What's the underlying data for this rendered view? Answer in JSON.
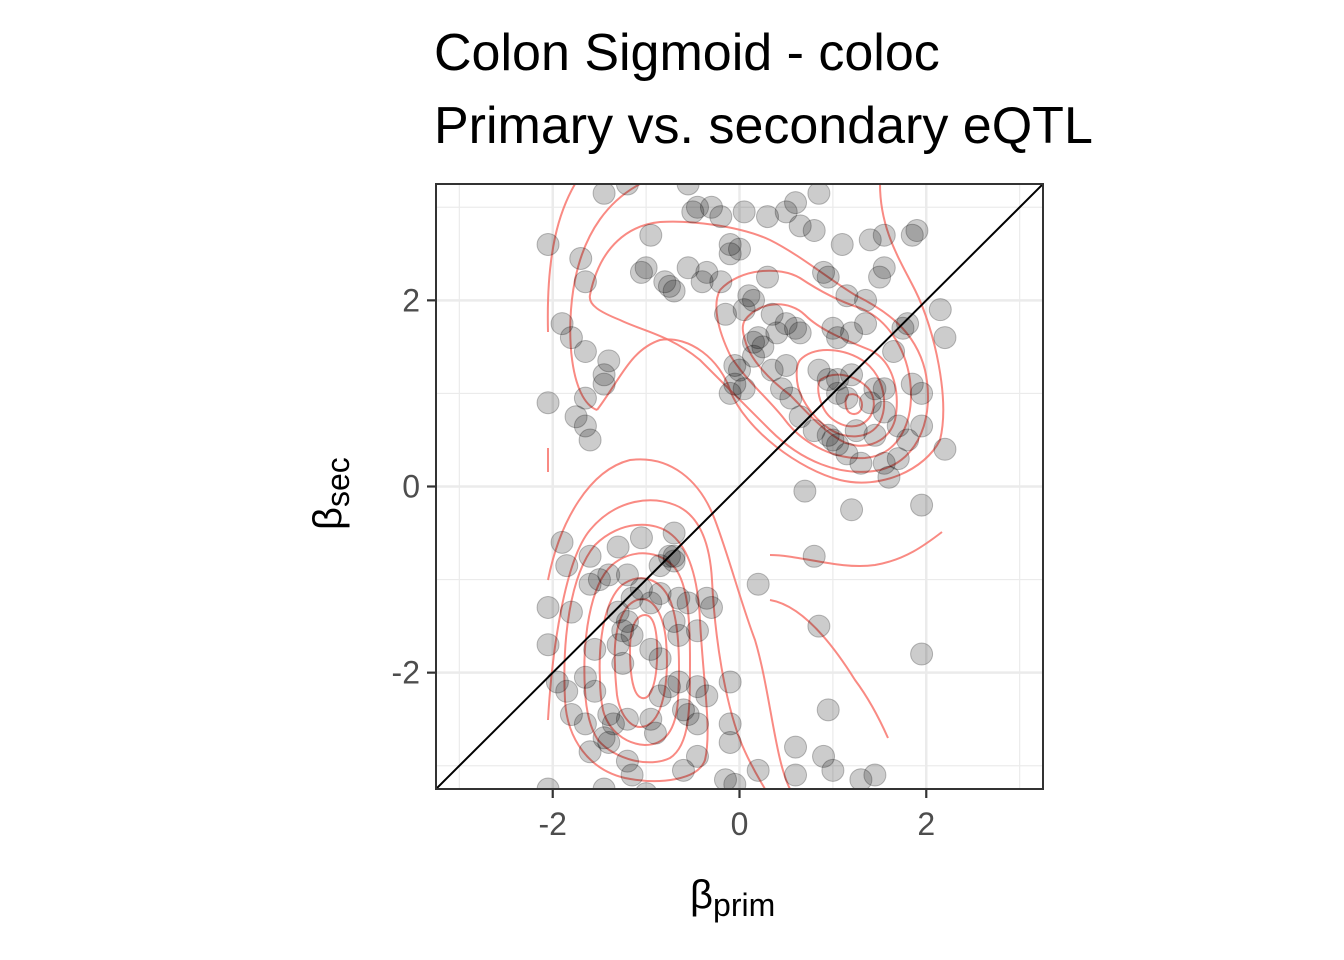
{
  "chart_data": {
    "type": "scatter",
    "title": "Colon Sigmoid - coloc",
    "subtitle": "Primary vs. secondary eQTL",
    "xlabel": {
      "symbol": "β",
      "subscript": "prim"
    },
    "ylabel": {
      "symbol": "β",
      "subscript": "sec"
    },
    "xlim": [
      -3.25,
      3.25
    ],
    "ylim": [
      -3.25,
      3.25
    ],
    "xticks": [
      -2,
      0,
      2
    ],
    "yticks": [
      -2,
      0,
      2
    ],
    "xtick_labels": [
      "-2",
      "0",
      "2"
    ],
    "ytick_labels": [
      "-2",
      "0",
      "2"
    ],
    "grid": true,
    "reference_line": "y = x",
    "colors": {
      "points": "#000000",
      "point_alpha": 0.2,
      "contours": "#f8766d",
      "panel_border": "#333333",
      "grid_major": "#ebebeb"
    },
    "series": [
      {
        "points": [
          [
            -2.05,
            2.6
          ],
          [
            -1.7,
            2.45
          ],
          [
            -1.65,
            2.2
          ],
          [
            -1.2,
            3.25
          ],
          [
            -1.45,
            3.15
          ],
          [
            -0.55,
            3.25
          ],
          [
            -0.45,
            3.0
          ],
          [
            -0.3,
            3.0
          ],
          [
            -0.5,
            2.95
          ],
          [
            -0.95,
            2.7
          ],
          [
            -0.2,
            2.9
          ],
          [
            -0.1,
            2.6
          ],
          [
            0.05,
            2.95
          ],
          [
            0.3,
            2.9
          ],
          [
            0.5,
            2.95
          ],
          [
            0.65,
            2.8
          ],
          [
            0.8,
            2.75
          ],
          [
            0.85,
            3.15
          ],
          [
            0.6,
            3.05
          ],
          [
            1.1,
            2.6
          ],
          [
            1.4,
            2.65
          ],
          [
            1.55,
            2.7
          ],
          [
            1.9,
            2.75
          ],
          [
            1.85,
            2.7
          ],
          [
            -1.0,
            2.35
          ],
          [
            -1.05,
            2.3
          ],
          [
            -0.55,
            2.35
          ],
          [
            -0.35,
            2.3
          ],
          [
            -0.1,
            2.5
          ],
          [
            0.0,
            2.55
          ],
          [
            -0.8,
            2.2
          ],
          [
            -0.75,
            2.15
          ],
          [
            -0.7,
            2.1
          ],
          [
            -0.4,
            2.2
          ],
          [
            -0.2,
            2.2
          ],
          [
            0.3,
            2.25
          ],
          [
            0.9,
            2.3
          ],
          [
            0.95,
            2.25
          ],
          [
            1.55,
            2.35
          ],
          [
            1.5,
            2.25
          ],
          [
            1.35,
            2.0
          ],
          [
            1.15,
            2.05
          ],
          [
            0.1,
            2.05
          ],
          [
            0.15,
            2.0
          ],
          [
            0.05,
            1.9
          ],
          [
            0.35,
            1.85
          ],
          [
            -0.15,
            1.85
          ],
          [
            0.5,
            1.75
          ],
          [
            0.4,
            1.65
          ],
          [
            0.6,
            1.7
          ],
          [
            0.65,
            1.65
          ],
          [
            1.0,
            1.7
          ],
          [
            1.35,
            1.75
          ],
          [
            1.8,
            1.75
          ],
          [
            1.75,
            1.7
          ],
          [
            2.15,
            1.9
          ],
          [
            2.2,
            1.6
          ],
          [
            1.65,
            1.45
          ],
          [
            1.2,
            1.65
          ],
          [
            1.05,
            1.6
          ],
          [
            0.15,
            1.55
          ],
          [
            0.2,
            1.6
          ],
          [
            0.25,
            1.5
          ],
          [
            0.15,
            1.4
          ],
          [
            -0.05,
            1.3
          ],
          [
            0.0,
            1.25
          ],
          [
            0.35,
            1.25
          ],
          [
            0.5,
            1.3
          ],
          [
            0.85,
            1.25
          ],
          [
            0.95,
            1.15
          ],
          [
            1.05,
            1.15
          ],
          [
            1.2,
            1.2
          ],
          [
            1.55,
            1.05
          ],
          [
            1.45,
            1.05
          ],
          [
            1.85,
            1.1
          ],
          [
            1.95,
            1.0
          ],
          [
            -1.9,
            1.75
          ],
          [
            -1.8,
            1.6
          ],
          [
            -1.65,
            1.45
          ],
          [
            -1.4,
            1.35
          ],
          [
            -1.45,
            1.2
          ],
          [
            -1.45,
            1.1
          ],
          [
            -1.65,
            0.95
          ],
          [
            -2.05,
            0.9
          ],
          [
            -1.75,
            0.75
          ],
          [
            -1.65,
            0.65
          ],
          [
            -1.6,
            0.5
          ],
          [
            -0.05,
            1.1
          ],
          [
            0.05,
            1.05
          ],
          [
            -0.1,
            1.0
          ],
          [
            0.45,
            1.05
          ],
          [
            0.55,
            0.95
          ],
          [
            1.05,
            1.0
          ],
          [
            1.15,
            0.95
          ],
          [
            1.4,
            0.9
          ],
          [
            1.55,
            0.8
          ],
          [
            0.65,
            0.75
          ],
          [
            0.8,
            0.6
          ],
          [
            1.0,
            0.5
          ],
          [
            1.05,
            0.45
          ],
          [
            0.95,
            0.55
          ],
          [
            1.25,
            0.6
          ],
          [
            1.45,
            0.55
          ],
          [
            1.7,
            0.65
          ],
          [
            1.8,
            0.5
          ],
          [
            1.95,
            0.65
          ],
          [
            2.2,
            0.4
          ],
          [
            1.15,
            0.35
          ],
          [
            1.3,
            0.25
          ],
          [
            1.55,
            0.25
          ],
          [
            1.7,
            0.3
          ],
          [
            1.6,
            0.1
          ],
          [
            0.7,
            -0.05
          ],
          [
            1.2,
            -0.25
          ],
          [
            1.95,
            -0.2
          ],
          [
            -1.9,
            -0.6
          ],
          [
            -1.85,
            -0.85
          ],
          [
            -1.6,
            -0.75
          ],
          [
            -1.3,
            -0.65
          ],
          [
            -1.05,
            -0.55
          ],
          [
            -0.7,
            -0.5
          ],
          [
            -0.75,
            -0.75
          ],
          [
            -0.7,
            -0.8
          ],
          [
            -0.85,
            -0.85
          ],
          [
            -1.2,
            -0.95
          ],
          [
            -1.4,
            -0.95
          ],
          [
            -1.5,
            -1.0
          ],
          [
            -1.6,
            -1.05
          ],
          [
            -1.05,
            -1.1
          ],
          [
            -0.85,
            -1.15
          ],
          [
            -1.15,
            -1.2
          ],
          [
            -0.95,
            -1.25
          ],
          [
            -0.65,
            -1.2
          ],
          [
            -0.55,
            -1.25
          ],
          [
            -0.35,
            -1.2
          ],
          [
            -0.3,
            -1.3
          ],
          [
            -2.05,
            -1.3
          ],
          [
            -1.8,
            -1.35
          ],
          [
            -1.2,
            -1.45
          ],
          [
            -1.25,
            -1.55
          ],
          [
            -1.15,
            -1.6
          ],
          [
            -0.7,
            -1.45
          ],
          [
            -0.65,
            -1.6
          ],
          [
            -0.45,
            -1.55
          ],
          [
            -2.05,
            -1.7
          ],
          [
            -1.55,
            -1.75
          ],
          [
            -1.3,
            -1.7
          ],
          [
            -0.95,
            -1.75
          ],
          [
            -1.25,
            -1.9
          ],
          [
            -0.85,
            -1.85
          ],
          [
            -1.95,
            -2.1
          ],
          [
            -1.85,
            -2.2
          ],
          [
            -1.65,
            -2.05
          ],
          [
            -0.65,
            -2.1
          ],
          [
            -0.75,
            -2.15
          ],
          [
            -0.45,
            -2.15
          ],
          [
            -0.35,
            -2.25
          ],
          [
            -0.1,
            -2.1
          ],
          [
            -1.8,
            -2.45
          ],
          [
            -1.65,
            -2.55
          ],
          [
            -1.4,
            -2.45
          ],
          [
            -1.35,
            -2.55
          ],
          [
            -1.4,
            -2.75
          ],
          [
            -1.2,
            -2.5
          ],
          [
            -0.95,
            -2.5
          ],
          [
            -0.55,
            -2.45
          ],
          [
            -0.45,
            -2.55
          ],
          [
            -0.6,
            -2.4
          ],
          [
            -0.1,
            -2.55
          ],
          [
            -0.1,
            -2.75
          ],
          [
            -1.6,
            -2.85
          ],
          [
            -1.45,
            -2.7
          ],
          [
            -1.2,
            -2.95
          ],
          [
            -1.15,
            -3.1
          ],
          [
            -0.9,
            -2.65
          ],
          [
            -0.45,
            -2.9
          ],
          [
            -0.15,
            -3.15
          ],
          [
            -0.05,
            -3.2
          ],
          [
            -1.0,
            -3.3
          ],
          [
            -1.45,
            -3.25
          ],
          [
            -2.05,
            -3.25
          ],
          [
            0.2,
            -3.05
          ],
          [
            0.6,
            -2.8
          ],
          [
            0.6,
            -3.1
          ],
          [
            0.9,
            -2.9
          ],
          [
            0.95,
            -2.4
          ],
          [
            1.0,
            -3.05
          ],
          [
            1.3,
            -3.15
          ],
          [
            1.45,
            -3.1
          ],
          [
            1.95,
            -1.8
          ],
          [
            0.85,
            -1.5
          ],
          [
            0.2,
            -1.05
          ],
          [
            0.8,
            -0.75
          ],
          [
            -0.6,
            -3.05
          ],
          [
            -0.85,
            -2.25
          ],
          [
            -1.55,
            -2.2
          ],
          [
            -1.3,
            -1.35
          ],
          [
            -0.7,
            -0.75
          ]
        ]
      }
    ]
  }
}
